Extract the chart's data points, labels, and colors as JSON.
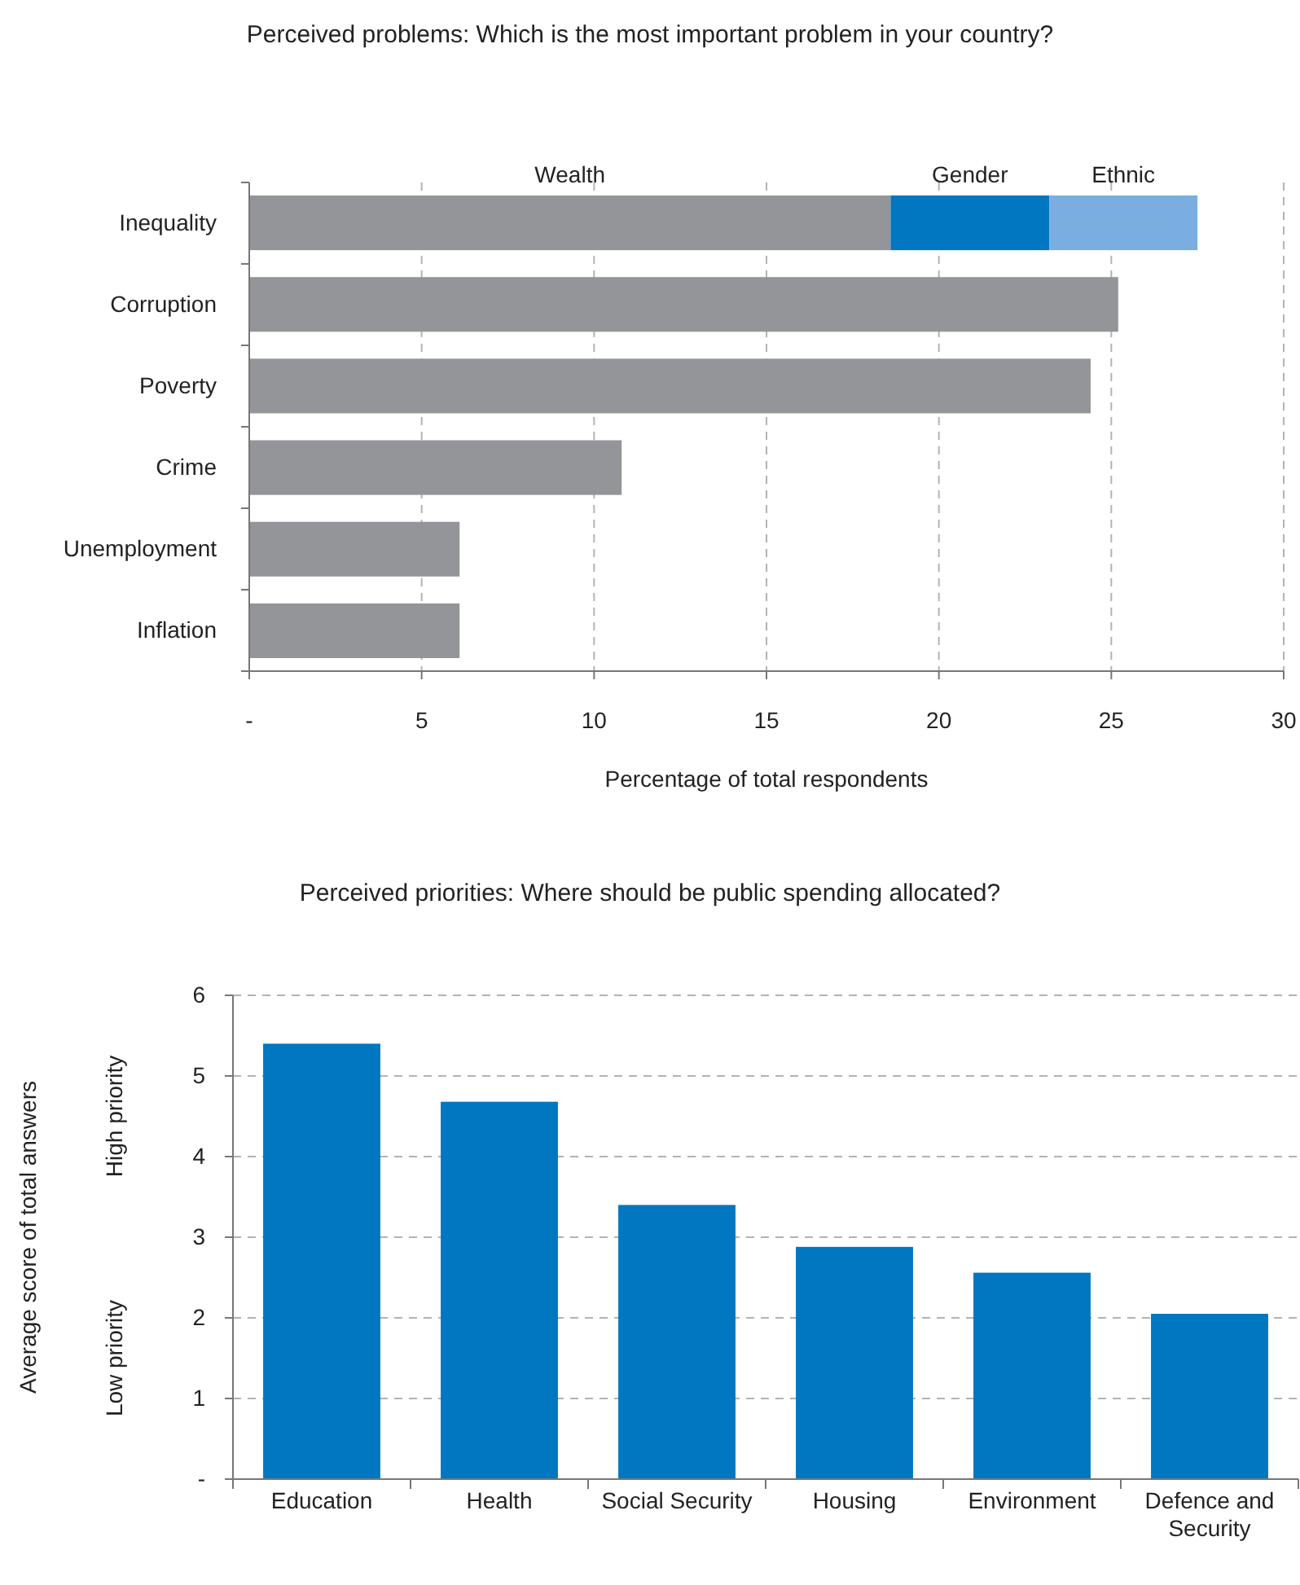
{
  "chart_data": [
    {
      "type": "bar",
      "orientation": "horizontal",
      "stacked": true,
      "title": "Perceived problems: Which is the most important problem in your country?",
      "xlabel": "Percentage of total respondents",
      "categories": [
        "Inequality",
        "Corruption",
        "Poverty",
        "Crime",
        "Unemployment",
        "Inflation"
      ],
      "series": [
        {
          "name": "Wealth",
          "color": "#939598",
          "values": [
            18.6,
            25.2,
            24.4,
            10.8,
            6.1,
            6.1
          ]
        },
        {
          "name": "Gender",
          "color": "#0077c0",
          "values": [
            4.6,
            null,
            null,
            null,
            null,
            null
          ]
        },
        {
          "name": "Ethnic",
          "color": "#7aaee0",
          "values": [
            4.3,
            null,
            null,
            null,
            null,
            null
          ]
        }
      ],
      "xlim": [
        0,
        30
      ],
      "xticks": [
        {
          "value": 0,
          "label": "-"
        },
        5,
        10,
        15,
        20,
        25,
        30
      ],
      "grid": "x",
      "legend": "top"
    },
    {
      "type": "bar",
      "title": "Perceived priorities: Where should be public spending allocated?",
      "ylabel": "Average score of total answers",
      "annotations": [
        "High priority",
        "Low priority"
      ],
      "categories": [
        "Education",
        "Health",
        "Social Security",
        "Housing",
        "Environment",
        "Defence and Security"
      ],
      "values": [
        5.4,
        4.68,
        3.4,
        2.88,
        2.56,
        2.05
      ],
      "color": "#0077c0",
      "ylim": [
        0,
        6
      ],
      "yticks": [
        {
          "value": 0,
          "label": "-"
        },
        1,
        2,
        3,
        4,
        5,
        6
      ],
      "grid": "y"
    }
  ]
}
